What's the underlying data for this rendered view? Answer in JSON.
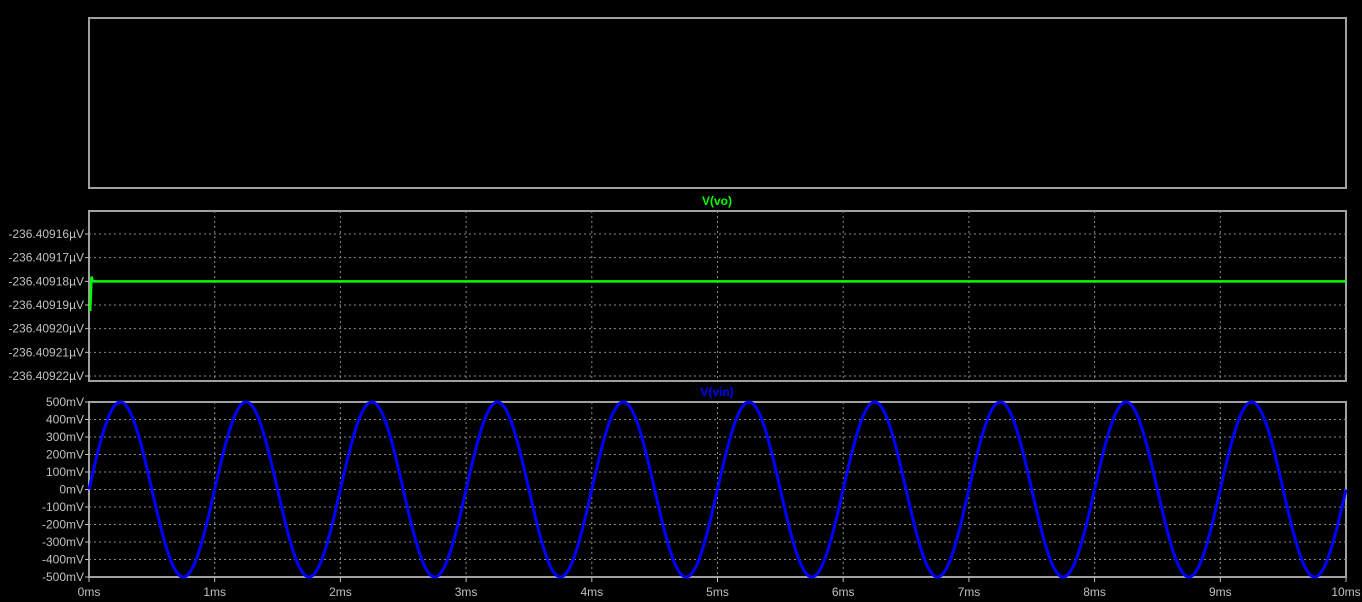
{
  "chart_data": [
    {
      "type": "line",
      "pane": "empty-pane",
      "series": []
    },
    {
      "type": "line",
      "pane": "vo-pane",
      "title": "V(vo)",
      "color": "#00ff00",
      "xlim": [
        0,
        10
      ],
      "xunit": "ms",
      "ylim": [
        -236.40922,
        -236.40916
      ],
      "yunit": "µV",
      "grid": true,
      "y_ticks": [
        "-236.40916µV",
        "-236.40917µV",
        "-236.40918µV",
        "-236.40919µV",
        "-236.40920µV",
        "-236.40921µV",
        "-236.40922µV"
      ],
      "series": [
        {
          "name": "V(vo)",
          "x": [
            0,
            0.01,
            0.02,
            0.03,
            10
          ],
          "y": [
            -236.409192,
            -236.409192,
            -236.409178,
            -236.40918,
            -236.40918
          ]
        }
      ]
    },
    {
      "type": "line",
      "pane": "vin-pane",
      "title": "V(vin)",
      "color": "#0000ff",
      "xlim": [
        0,
        10
      ],
      "xunit": "ms",
      "ylim": [
        -500,
        500
      ],
      "yunit": "mV",
      "grid": true,
      "y_ticks": [
        "500mV",
        "400mV",
        "300mV",
        "200mV",
        "100mV",
        "0mV",
        "-100mV",
        "-200mV",
        "-300mV",
        "-400mV",
        "-500mV"
      ],
      "series": [
        {
          "name": "V(vin)",
          "waveform": "sine",
          "amplitude": 500,
          "offset": 0,
          "frequency_khz": 1
        }
      ]
    }
  ],
  "x_ticks": [
    "0ms",
    "1ms",
    "2ms",
    "3ms",
    "4ms",
    "5ms",
    "6ms",
    "7ms",
    "8ms",
    "9ms",
    "10ms"
  ]
}
